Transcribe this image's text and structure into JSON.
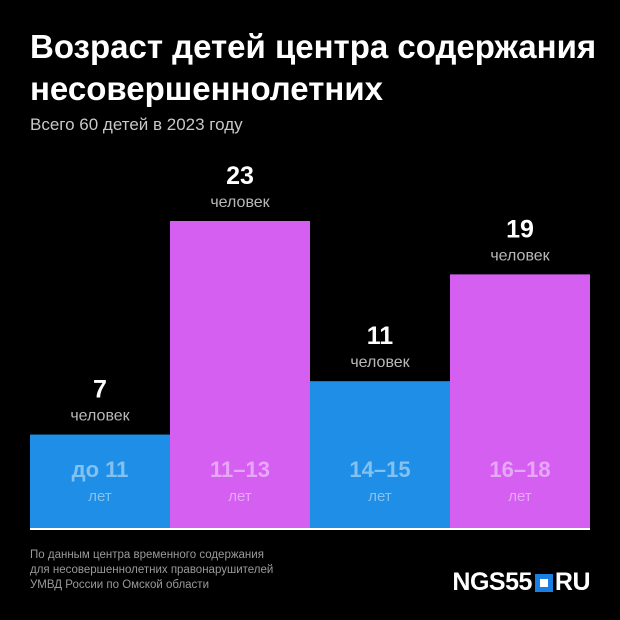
{
  "header": {
    "title": "Возраст детей центра содержания несовершеннолетних",
    "subtitle": "Всего 60 детей в 2023 году"
  },
  "chart_data": {
    "type": "bar",
    "title": "Возраст детей центра содержания несовершеннолетних",
    "subtitle": "Всего 60 детей в 2023 году",
    "categories": [
      "до 11",
      "11–13",
      "14–15",
      "16–18"
    ],
    "category_unit": "лет",
    "values": [
      7,
      23,
      11,
      19
    ],
    "value_unit": "человек",
    "ylim": [
      0,
      23
    ],
    "grid": false,
    "legend": "none",
    "colors": [
      "#1e8ee6",
      "#d45ff0",
      "#1e8ee6",
      "#d45ff0"
    ]
  },
  "footer": {
    "source_lines": [
      "По данным центра временного содержания",
      "для несовершеннолетних правонарушителей",
      "УМВД России по Омской области"
    ],
    "logo_left": "NGS55",
    "logo_right": "RU"
  },
  "colors": {
    "background": "#000000",
    "blue": "#1e8ee6",
    "purple": "#d45ff0"
  }
}
